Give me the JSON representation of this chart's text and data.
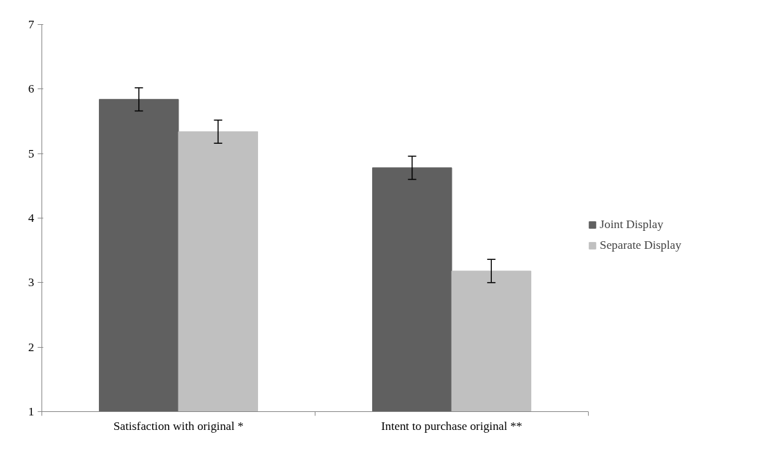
{
  "chart_data": {
    "type": "bar",
    "categories": [
      "Satisfaction with original *",
      "Intent to purchase original **"
    ],
    "series": [
      {
        "name": "Joint Display",
        "color": "#606060",
        "values": [
          5.84,
          4.78
        ],
        "errors": [
          0.18,
          0.18
        ]
      },
      {
        "name": "Separate Display",
        "color": "#c0c0c0",
        "values": [
          5.34,
          3.18
        ],
        "errors": [
          0.18,
          0.18
        ]
      }
    ],
    "ylim": [
      1,
      7
    ],
    "yticks": [
      1,
      2,
      3,
      4,
      5,
      6,
      7
    ],
    "grid": false,
    "legend": "right"
  }
}
